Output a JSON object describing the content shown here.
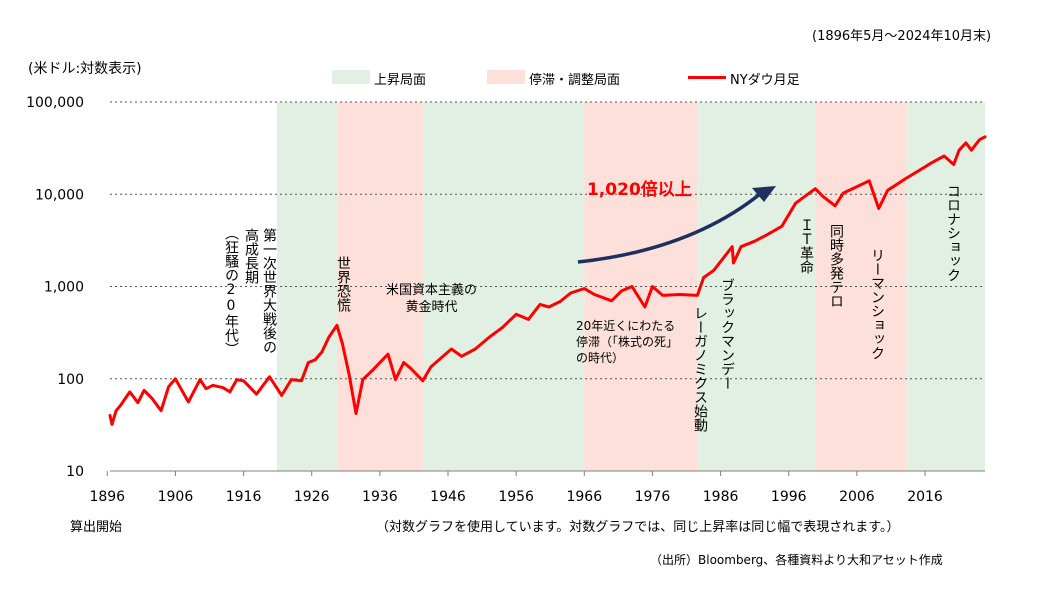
{
  "header": {
    "period": "(1896年5月～2024年10月末)",
    "unit": "(米ドル:対数表示)"
  },
  "legend": {
    "rise": "上昇局面",
    "stagnation": "停滞・調整局面",
    "dow": "NYダウ月足"
  },
  "footer": {
    "start_label": "算出開始",
    "log_note": "（対数グラフを使用しています。対数グラフでは、同じ上昇率は同じ幅で表現されます。）",
    "source": "（出所）Bloomberg、各種資料より大和アセット作成"
  },
  "annotations": {
    "growth": "1,020倍以上",
    "ww1": "第一次世界大戦後の",
    "high_growth": "高成長期",
    "roaring": "（狂騒の20年代）",
    "depression": "世界恐慌",
    "golden_line1": "米国資本主義の",
    "golden_line2": "黄金時代",
    "stag_line1": "20年近くにわたる",
    "stag_line2": "停滞（「株式の死」",
    "stag_line3": "の時代）",
    "reagan": "レーガノミクス始動",
    "black_monday": "ブラックマンデー",
    "it": "ＩＴ革命",
    "terror": "同時多発テロ",
    "lehman": "リーマンショック",
    "corona": "コロナショック"
  },
  "colors": {
    "rise": "#e2f0e3",
    "stagnation": "#fde0d9",
    "line": "#ff0000",
    "arrow": "#1f3060",
    "growth_text": "#ff0000"
  },
  "chart_data": {
    "type": "line",
    "title": "",
    "xlabel": "",
    "ylabel": "(米ドル:対数表示)",
    "yscale": "log",
    "ylim": [
      10,
      100000
    ],
    "yticks": [
      10,
      100,
      1000,
      10000,
      100000
    ],
    "ytick_labels": [
      "10",
      "100",
      "1,000",
      "10,000",
      "100,000"
    ],
    "xlim": [
      1896.4,
      2024.8
    ],
    "xticks": [
      1896,
      1906,
      1916,
      1926,
      1936,
      1946,
      1956,
      1966,
      1976,
      1986,
      1996,
      2006,
      2016
    ],
    "xtick_labels": [
      "1896",
      "1906",
      "1916",
      "1926",
      "1936",
      "1946",
      "1956",
      "1966",
      "1976",
      "1986",
      "1996",
      "2006",
      "2016"
    ],
    "grid": "horizontal-dashed",
    "legend_position": "top",
    "phases": [
      {
        "type": "rise",
        "start": 1920.9,
        "end": 1929.7
      },
      {
        "type": "stagnation",
        "start": 1929.7,
        "end": 1942.3
      },
      {
        "type": "rise",
        "start": 1942.3,
        "end": 1966.0
      },
      {
        "type": "stagnation",
        "start": 1966.0,
        "end": 1982.6
      },
      {
        "type": "rise",
        "start": 1982.6,
        "end": 2000.0
      },
      {
        "type": "stagnation",
        "start": 2000.0,
        "end": 2013.3
      },
      {
        "type": "rise",
        "start": 2013.3,
        "end": 2024.8
      }
    ],
    "series": [
      {
        "name": "NYダウ月足",
        "x": [
          1896.4,
          1896.7,
          1897.3,
          1898.0,
          1899.3,
          1900.5,
          1901.4,
          1902.5,
          1903.9,
          1905.0,
          1906.0,
          1907.9,
          1909.6,
          1910.5,
          1911.5,
          1913.0,
          1914.0,
          1915.0,
          1916.0,
          1917.9,
          1919.8,
          1921.6,
          1923.0,
          1924.5,
          1925.5,
          1926.5,
          1927.5,
          1928.5,
          1929.7,
          1930.5,
          1931.5,
          1932.5,
          1933.5,
          1935.0,
          1937.2,
          1938.3,
          1939.5,
          1940.5,
          1942.3,
          1943.5,
          1946.5,
          1948.0,
          1950.0,
          1952.0,
          1954.0,
          1956.0,
          1957.8,
          1959.5,
          1960.8,
          1962.5,
          1964.0,
          1966.0,
          1967.5,
          1970.0,
          1971.5,
          1973.0,
          1974.9,
          1976.0,
          1977.5,
          1980.0,
          1982.6,
          1983.5,
          1985.0,
          1987.7,
          1987.9,
          1989.0,
          1991.0,
          1993.0,
          1995.0,
          1997.0,
          1999.9,
          2001.0,
          2002.8,
          2004.0,
          2007.8,
          2009.2,
          2010.5,
          2012.0,
          2013.3,
          2015.0,
          2017.0,
          2018.8,
          2020.2,
          2021.0,
          2022.0,
          2022.8,
          2024.0,
          2024.8
        ],
        "values": [
          40,
          32,
          45,
          52,
          72,
          55,
          75,
          62,
          45,
          82,
          100,
          56,
          98,
          78,
          85,
          80,
          72,
          98,
          95,
          68,
          105,
          66,
          98,
          95,
          150,
          160,
          195,
          280,
          380,
          240,
          110,
          42,
          98,
          125,
          185,
          98,
          150,
          130,
          95,
          135,
          210,
          175,
          210,
          280,
          360,
          500,
          440,
          640,
          600,
          690,
          850,
          950,
          820,
          700,
          900,
          1000,
          600,
          1000,
          800,
          820,
          800,
          1250,
          1500,
          2700,
          1800,
          2700,
          3100,
          3700,
          4500,
          8000,
          11500,
          9500,
          7500,
          10300,
          14000,
          7000,
          11000,
          13000,
          15000,
          17800,
          22000,
          26000,
          21000,
          30000,
          36000,
          30000,
          39000,
          42000
        ]
      }
    ]
  }
}
